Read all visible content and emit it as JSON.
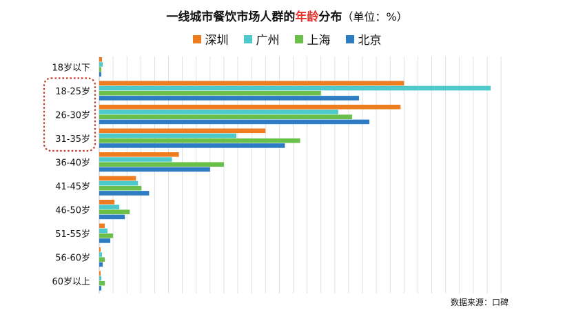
{
  "title": {
    "prefix": "一线城市餐饮市场人群的",
    "highlight": "年龄",
    "suffix": "分布",
    "unit": "（单位：%）"
  },
  "source": "数据来源：口碑",
  "colors": {
    "深圳": "#ee7d22",
    "广州": "#4dc9cc",
    "上海": "#6abf4b",
    "北京": "#2e7dc4",
    "grid": "#d9d9d9",
    "highlight_box": "#c0392b"
  },
  "chart_data": {
    "type": "bar",
    "orientation": "horizontal",
    "categories": [
      "18岁以下",
      "18-25岁",
      "26-30岁",
      "31-35岁",
      "36-40岁",
      "41-45岁",
      "46-50岁",
      "51-55岁",
      "56-60岁",
      "60岁以上"
    ],
    "series": [
      {
        "name": "深圳",
        "values": [
          0.4,
          44.0,
          43.5,
          24.0,
          11.5,
          5.3,
          2.2,
          0.8,
          0.2,
          0.2
        ]
      },
      {
        "name": "广州",
        "values": [
          0.5,
          56.5,
          34.5,
          19.8,
          10.5,
          5.6,
          2.9,
          1.2,
          0.4,
          0.3
        ]
      },
      {
        "name": "上海",
        "values": [
          0.3,
          32.0,
          36.5,
          29.0,
          18.0,
          6.1,
          4.4,
          2.0,
          0.8,
          0.8
        ]
      },
      {
        "name": "北京",
        "values": [
          0.3,
          37.5,
          39.0,
          26.8,
          16.0,
          7.2,
          3.7,
          1.6,
          0.5,
          0.3
        ]
      }
    ],
    "xlim": [
      0,
      60
    ],
    "grid": true,
    "legend": "top-center",
    "highlighted_categories": [
      "18-25岁",
      "26-30岁",
      "31-35岁"
    ]
  }
}
